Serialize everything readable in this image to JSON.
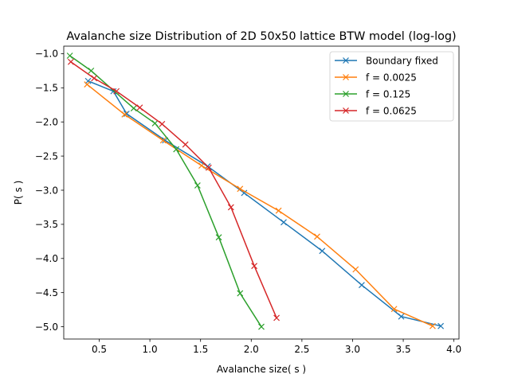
{
  "chart_data": {
    "type": "line",
    "title": "Avalanche size Distribution of 2D 50x50 lattice BTW model (log-log)",
    "xlabel": "Avalanche size( s )",
    "ylabel": "P( s )",
    "xlim": [
      0.15,
      4.05
    ],
    "ylim": [
      -5.18,
      -0.89
    ],
    "xticks": [
      0.5,
      1.0,
      1.5,
      2.0,
      2.5,
      3.0,
      3.5,
      4.0
    ],
    "xtick_labels": [
      "0.5",
      "1.0",
      "1.5",
      "2.0",
      "2.5",
      "3.0",
      "3.5",
      "4.0"
    ],
    "yticks": [
      -1.0,
      -1.5,
      -2.0,
      -2.5,
      -3.0,
      -3.5,
      -4.0,
      -4.5,
      -5.0
    ],
    "ytick_labels": [
      "−1.0",
      "−1.5",
      "−2.0",
      "−2.5",
      "−3.0",
      "−3.5",
      "−4.0",
      "−4.5",
      "−5.0"
    ],
    "grid": false,
    "legend_position": "top-right",
    "marker": "x",
    "series": [
      {
        "name": "Boundary fixed",
        "color": "#1f77b4",
        "x": [
          0.39,
          0.64,
          0.77,
          1.15,
          1.57,
          1.93,
          2.32,
          2.7,
          3.09,
          3.48,
          3.87
        ],
        "y": [
          -1.4,
          -1.55,
          -1.88,
          -2.27,
          -2.65,
          -3.04,
          -3.47,
          -3.89,
          -4.39,
          -4.85,
          -4.99
        ]
      },
      {
        "name": "f = 0.0025",
        "color": "#ff7f0e",
        "x": [
          0.38,
          0.75,
          1.13,
          1.51,
          1.89,
          2.27,
          2.65,
          3.03,
          3.41,
          3.79
        ],
        "y": [
          -1.45,
          -1.89,
          -2.27,
          -2.64,
          -2.98,
          -3.3,
          -3.68,
          -4.16,
          -4.74,
          -4.99
        ]
      },
      {
        "name": "f = 0.125",
        "color": "#2ca02c",
        "x": [
          0.21,
          0.42,
          0.84,
          1.05,
          1.26,
          1.47,
          1.68,
          1.89,
          2.1
        ],
        "y": [
          -1.03,
          -1.25,
          -1.8,
          -2.02,
          -2.4,
          -2.93,
          -3.69,
          -4.51,
          -5.0
        ]
      },
      {
        "name": "f = 0.0625",
        "color": "#d62728",
        "x": [
          0.22,
          0.45,
          0.67,
          0.9,
          1.12,
          1.35,
          1.58,
          1.8,
          2.03,
          2.25
        ],
        "y": [
          -1.12,
          -1.36,
          -1.55,
          -1.79,
          -2.03,
          -2.33,
          -2.67,
          -3.25,
          -4.11,
          -4.87
        ]
      }
    ]
  }
}
